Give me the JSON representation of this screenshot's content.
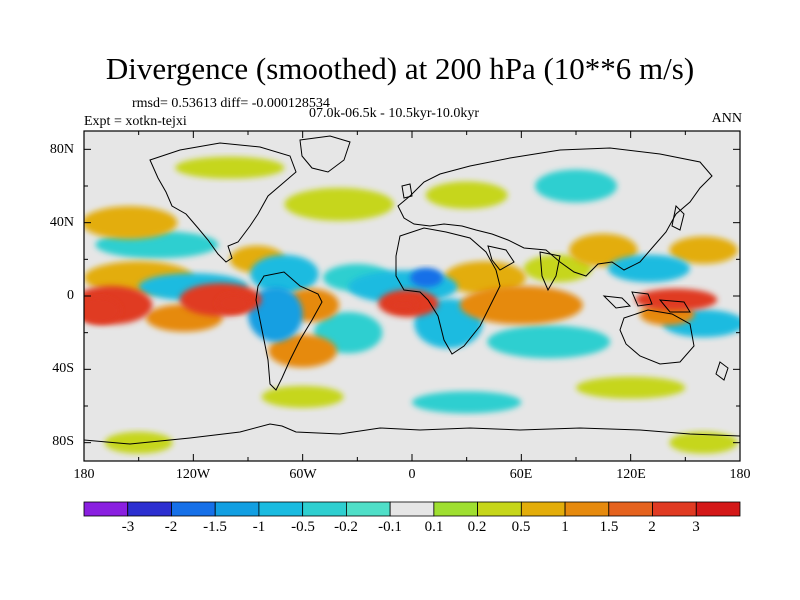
{
  "chart_data": {
    "type": "heatmap",
    "title": "Divergence (smoothed) at 200 hPa (10**6 m/s)",
    "stats": "rmsd= 0.53613 diff= -0.000128534",
    "period": "07.0k-06.5k - 10.5kyr-10.0kyr",
    "experiment": "Expt = xotkn-tejxi",
    "season": "ANN",
    "projection": "cylindrical equidistant, coastlines overlaid",
    "x_ticks": [
      "180",
      "120W",
      "60W",
      "0",
      "60E",
      "120E",
      "180"
    ],
    "y_ticks": [
      "80N",
      "40N",
      "0",
      "40S",
      "80S"
    ],
    "lon_range": [
      -180,
      180
    ],
    "lat_range": [
      -90,
      90
    ],
    "colorbar": {
      "labels": [
        "-3",
        "-2",
        "-1.5",
        "-1",
        "-0.5",
        "-0.2",
        "-0.1",
        "0.1",
        "0.2",
        "0.5",
        "1",
        "1.5",
        "2",
        "3"
      ],
      "colors": [
        "#8a1fe0",
        "#2c2fd0",
        "#1670e8",
        "#129fe2",
        "#1abbe0",
        "#2ecfd0",
        "#4fdfc8",
        "#e6e6e6",
        "#9fdf30",
        "#c6d61a",
        "#e3ad0a",
        "#e68a0e",
        "#e5621e",
        "#e03a22",
        "#d41818"
      ]
    },
    "field_patches": [
      {
        "lon": -165,
        "lat": -5,
        "w": 30,
        "h": 14,
        "v": 2.0
      },
      {
        "lon": -172,
        "lat": -8,
        "w": 16,
        "h": 10,
        "v": 2.6
      },
      {
        "lon": -150,
        "lat": 10,
        "w": 40,
        "h": 12,
        "v": 0.6
      },
      {
        "lon": -140,
        "lat": 28,
        "w": 45,
        "h": 10,
        "v": -0.4
      },
      {
        "lon": -155,
        "lat": 40,
        "w": 35,
        "h": 12,
        "v": 0.8
      },
      {
        "lon": -120,
        "lat": 5,
        "w": 40,
        "h": 10,
        "v": -1.0
      },
      {
        "lon": -105,
        "lat": -2,
        "w": 30,
        "h": 12,
        "v": 2.2
      },
      {
        "lon": -98,
        "lat": -4,
        "w": 12,
        "h": 7,
        "v": 2.8
      },
      {
        "lon": -125,
        "lat": -12,
        "w": 28,
        "h": 10,
        "v": 1.2
      },
      {
        "lon": -85,
        "lat": 20,
        "w": 20,
        "h": 10,
        "v": 0.5
      },
      {
        "lon": -70,
        "lat": 12,
        "w": 25,
        "h": 14,
        "v": -0.6
      },
      {
        "lon": -75,
        "lat": -10,
        "w": 20,
        "h": 20,
        "v": -1.3
      },
      {
        "lon": -55,
        "lat": -5,
        "w": 20,
        "h": 12,
        "v": 1.0
      },
      {
        "lon": -60,
        "lat": -30,
        "w": 25,
        "h": 12,
        "v": 1.2
      },
      {
        "lon": -35,
        "lat": -20,
        "w": 25,
        "h": 15,
        "v": -0.4
      },
      {
        "lon": -30,
        "lat": 10,
        "w": 25,
        "h": 10,
        "v": -0.4
      },
      {
        "lon": -5,
        "lat": 5,
        "w": 40,
        "h": 12,
        "v": -0.8
      },
      {
        "lon": 8,
        "lat": 10,
        "w": 12,
        "h": 7,
        "v": -2.0
      },
      {
        "lon": -2,
        "lat": -4,
        "w": 22,
        "h": 10,
        "v": 2.2
      },
      {
        "lon": -5,
        "lat": -5,
        "w": 10,
        "h": 5,
        "v": 2.8
      },
      {
        "lon": 20,
        "lat": -15,
        "w": 25,
        "h": 18,
        "v": -0.6
      },
      {
        "lon": 40,
        "lat": 10,
        "w": 30,
        "h": 12,
        "v": 0.5
      },
      {
        "lon": 60,
        "lat": -5,
        "w": 45,
        "h": 14,
        "v": 1.3
      },
      {
        "lon": 80,
        "lat": 15,
        "w": 25,
        "h": 10,
        "v": 0.4
      },
      {
        "lon": 75,
        "lat": -25,
        "w": 45,
        "h": 12,
        "v": -0.3
      },
      {
        "lon": 105,
        "lat": 25,
        "w": 25,
        "h": 12,
        "v": 0.8
      },
      {
        "lon": 130,
        "lat": 15,
        "w": 30,
        "h": 10,
        "v": -0.9
      },
      {
        "lon": 145,
        "lat": -2,
        "w": 30,
        "h": 8,
        "v": 2.3
      },
      {
        "lon": 140,
        "lat": -10,
        "w": 20,
        "h": 8,
        "v": 1.2
      },
      {
        "lon": 160,
        "lat": -15,
        "w": 30,
        "h": 10,
        "v": -0.7
      },
      {
        "lon": 160,
        "lat": 25,
        "w": 25,
        "h": 10,
        "v": 0.5
      },
      {
        "lon": -40,
        "lat": 50,
        "w": 40,
        "h": 12,
        "v": 0.3
      },
      {
        "lon": 30,
        "lat": 55,
        "w": 30,
        "h": 10,
        "v": 0.4
      },
      {
        "lon": 90,
        "lat": 60,
        "w": 30,
        "h": 12,
        "v": -0.4
      },
      {
        "lon": -100,
        "lat": 70,
        "w": 40,
        "h": 8,
        "v": 0.3
      },
      {
        "lon": -60,
        "lat": -55,
        "w": 30,
        "h": 8,
        "v": 0.4
      },
      {
        "lon": 30,
        "lat": -58,
        "w": 40,
        "h": 8,
        "v": -0.3
      },
      {
        "lon": 120,
        "lat": -50,
        "w": 40,
        "h": 8,
        "v": 0.3
      },
      {
        "lon": -150,
        "lat": -80,
        "w": 25,
        "h": 8,
        "v": 0.4
      },
      {
        "lon": 160,
        "lat": -80,
        "w": 25,
        "h": 8,
        "v": 0.3
      }
    ]
  }
}
